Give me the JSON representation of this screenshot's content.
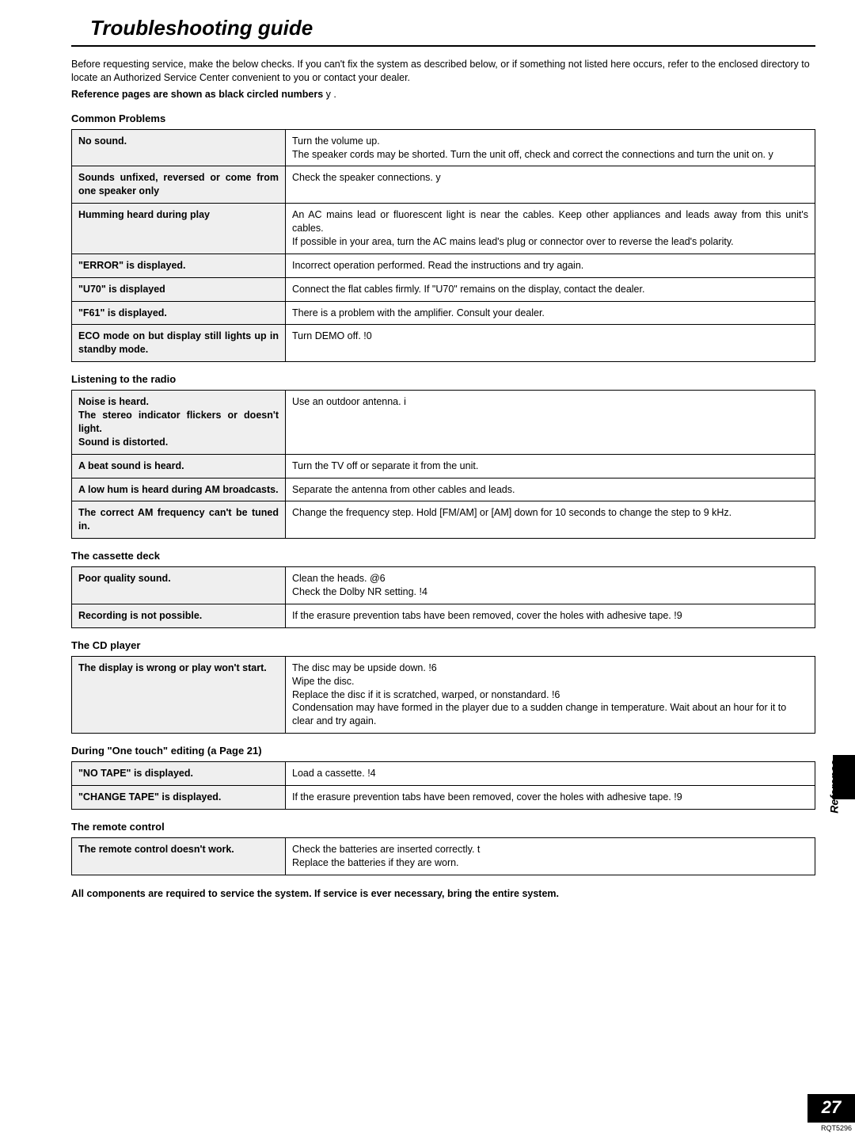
{
  "title": "Troubleshooting guide",
  "intro_line1": "Before requesting service, make the below checks. If you can't fix the system as described below, or if something not listed here occurs, refer to the enclosed directory to locate an Authorized Service Center convenient to you or contact your dealer.",
  "intro_line2_prefix": "Reference pages are shown as black circled numbers ",
  "intro_line2_suffix": "y  .",
  "sections": {
    "common": {
      "heading": "Common Problems",
      "rows": [
        {
          "problem": "No sound.",
          "solution": "Turn the volume up.\nThe speaker cords may be shorted. Turn the unit off, check and correct the connections and turn the unit on. y"
        },
        {
          "problem": "Sounds unfixed, reversed or come from one speaker only",
          "solution": "Check the speaker connections. y"
        },
        {
          "problem": "Humming heard during play",
          "solution": "An AC mains lead or fluorescent light is near the cables. Keep other appliances and leads away from this unit's cables.\nIf possible in your area, turn the AC mains lead's plug or connector over to reverse the lead's polarity."
        },
        {
          "problem": "\"ERROR\" is displayed.",
          "solution": "Incorrect operation performed. Read the instructions and try again."
        },
        {
          "problem": "\"U70\" is displayed",
          "solution": "Connect the flat cables firmly. If \"U70\" remains on the display, contact the dealer."
        },
        {
          "problem": "\"F61\" is displayed.",
          "solution": "There is a problem with the amplifier. Consult your dealer."
        },
        {
          "problem": "ECO mode on but display still lights up in standby mode.",
          "solution": "Turn DEMO off. !0"
        }
      ]
    },
    "radio": {
      "heading": "Listening to the radio",
      "rows": [
        {
          "problem": "Noise is heard.\nThe stereo indicator flickers or doesn't light.\nSound is distorted.",
          "solution": "Use an outdoor antenna. i"
        },
        {
          "problem": "A beat sound is heard.",
          "solution": "Turn the TV off or separate it from the unit."
        },
        {
          "problem": "A low hum is heard during AM broadcasts.",
          "solution": "Separate the antenna from other cables and leads."
        },
        {
          "problem": "The correct AM frequency can't be tuned in.",
          "solution": "Change the frequency step. Hold [FM/AM] or [AM] down for 10 seconds to change the step to 9 kHz."
        }
      ]
    },
    "cassette": {
      "heading": "The cassette deck",
      "rows": [
        {
          "problem": "Poor quality sound.",
          "solution": "Clean the heads. @6\nCheck the Dolby NR setting. !4"
        },
        {
          "problem": "Recording is not possible.",
          "solution": "If the erasure prevention tabs have been removed, cover the holes with adhesive tape. !9"
        }
      ]
    },
    "cd": {
      "heading": "The CD player",
      "rows": [
        {
          "problem": "The display is wrong or play won't start.",
          "solution": "The disc may be upside down. !6\nWipe the disc.\nReplace the disc if it is scratched, warped, or nonstandard. !6\nCondensation may have formed in the player due to a sudden change in temperature. Wait about an hour for it to clear and try again."
        }
      ]
    },
    "onetouch": {
      "heading": "During \"One touch\" editing (a  Page 21)",
      "rows": [
        {
          "problem": "\"NO TAPE\" is displayed.",
          "solution": "Load a cassette. !4"
        },
        {
          "problem": "\"CHANGE TAPE\" is displayed.",
          "solution": "If the erasure prevention tabs have been removed, cover the holes with adhesive tape. !9"
        }
      ]
    },
    "remote": {
      "heading": "The remote control",
      "rows": [
        {
          "problem": "The remote control doesn't work.",
          "solution": "Check the batteries are inserted correctly. t\nReplace the batteries if they are worn."
        }
      ]
    }
  },
  "service_note": "All components are required to service the system. If service is ever necessary, bring the entire system.",
  "side_label": "Reference",
  "page_number": "27",
  "footer_code": "RQT5296",
  "colors": {
    "background": "#ffffff",
    "text": "#000000",
    "problem_bg": "#efefef",
    "border": "#000000",
    "tab_bg": "#000000",
    "page_num_bg": "#000000",
    "page_num_fg": "#ffffff"
  },
  "typography": {
    "title_fontsize": 26,
    "body_fontsize": 12.5,
    "heading_fontsize": 13,
    "page_num_fontsize": 22
  }
}
